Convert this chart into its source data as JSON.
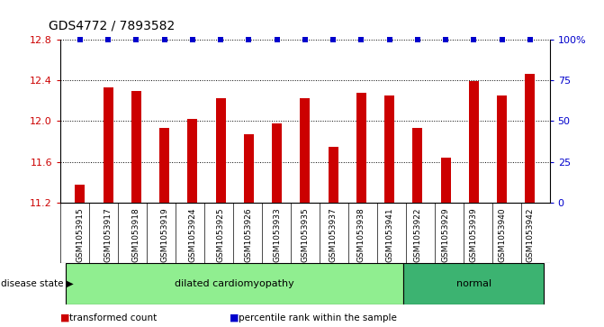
{
  "title": "GDS4772 / 7893582",
  "samples": [
    "GSM1053915",
    "GSM1053917",
    "GSM1053918",
    "GSM1053919",
    "GSM1053924",
    "GSM1053925",
    "GSM1053926",
    "GSM1053933",
    "GSM1053935",
    "GSM1053937",
    "GSM1053938",
    "GSM1053941",
    "GSM1053922",
    "GSM1053929",
    "GSM1053939",
    "GSM1053940",
    "GSM1053942"
  ],
  "bar_values": [
    11.38,
    12.33,
    12.29,
    11.93,
    12.02,
    12.22,
    11.87,
    11.98,
    12.22,
    11.75,
    12.28,
    12.25,
    11.93,
    11.64,
    12.39,
    12.25,
    12.46
  ],
  "percentile_values": [
    100,
    100,
    100,
    100,
    100,
    100,
    100,
    100,
    100,
    100,
    100,
    100,
    100,
    100,
    100,
    100,
    100
  ],
  "disease_groups": [
    {
      "label": "dilated cardiomyopathy",
      "start": 0,
      "end": 12,
      "color": "#90EE90"
    },
    {
      "label": "normal",
      "start": 12,
      "end": 17,
      "color": "#3CB371"
    }
  ],
  "ylim": [
    11.2,
    12.8
  ],
  "yticks": [
    11.2,
    11.6,
    12.0,
    12.4,
    12.8
  ],
  "right_yticks": [
    0,
    25,
    50,
    75,
    100
  ],
  "right_ylabels": [
    "0",
    "25",
    "50",
    "75",
    "100%"
  ],
  "bar_color": "#CC0000",
  "percentile_color": "#0000CC",
  "grid_color": "#000000",
  "bg_color": "#FFFFFF",
  "sample_bg_color": "#C8C8C8",
  "legend_items": [
    {
      "label": "transformed count",
      "color": "#CC0000"
    },
    {
      "label": "percentile rank within the sample",
      "color": "#0000CC"
    }
  ],
  "disease_state_label": "disease state",
  "title_fontsize": 10,
  "tick_fontsize": 8,
  "label_fontsize": 8
}
